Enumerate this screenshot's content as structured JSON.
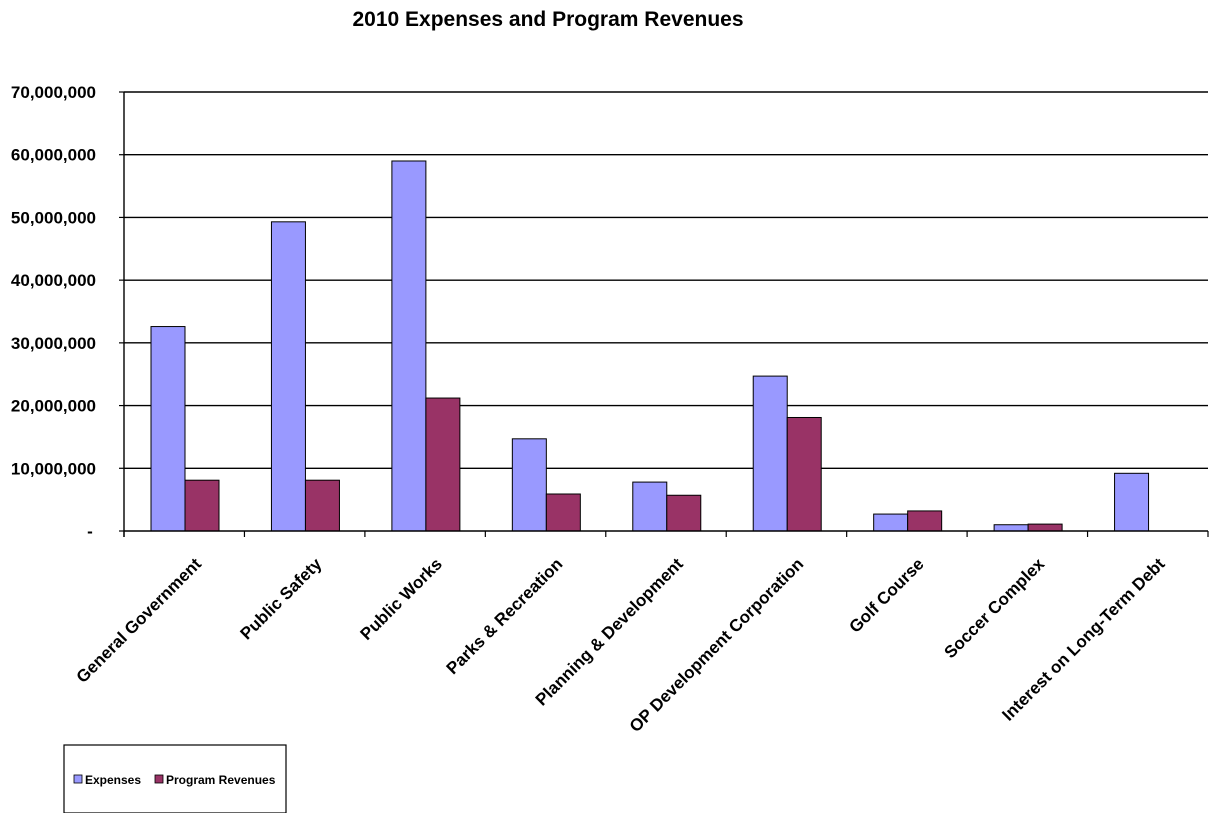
{
  "chart_data": {
    "type": "bar",
    "title": "2010 Expenses and Program Revenues",
    "xlabel": "",
    "ylabel": "",
    "ylim": [
      0,
      70000000
    ],
    "yticks": [
      {
        "value": 0,
        "label": "-"
      },
      {
        "value": 10000000,
        "label": "10,000,000"
      },
      {
        "value": 20000000,
        "label": "20,000,000"
      },
      {
        "value": 30000000,
        "label": "30,000,000"
      },
      {
        "value": 40000000,
        "label": "40,000,000"
      },
      {
        "value": 50000000,
        "label": "50,000,000"
      },
      {
        "value": 60000000,
        "label": "60,000,000"
      },
      {
        "value": 70000000,
        "label": "70,000,000"
      }
    ],
    "grid": true,
    "legend_position": "bottom-left",
    "categories": [
      "General Government",
      "Public Safety",
      "Public Works",
      "Parks & Recreation",
      "Planning & Development",
      "OP Development Corporation",
      "Golf Course",
      "Soccer Complex",
      "Interest on Long-Term Debt"
    ],
    "series": [
      {
        "name": "Expenses",
        "color": "#9999ff",
        "values": [
          32600000,
          49300000,
          59000000,
          14700000,
          7800000,
          24700000,
          2700000,
          1000000,
          9200000
        ]
      },
      {
        "name": "Program Revenues",
        "color": "#993366",
        "values": [
          8100000,
          8100000,
          21200000,
          5900000,
          5700000,
          18100000,
          3200000,
          1100000,
          0
        ]
      }
    ]
  }
}
